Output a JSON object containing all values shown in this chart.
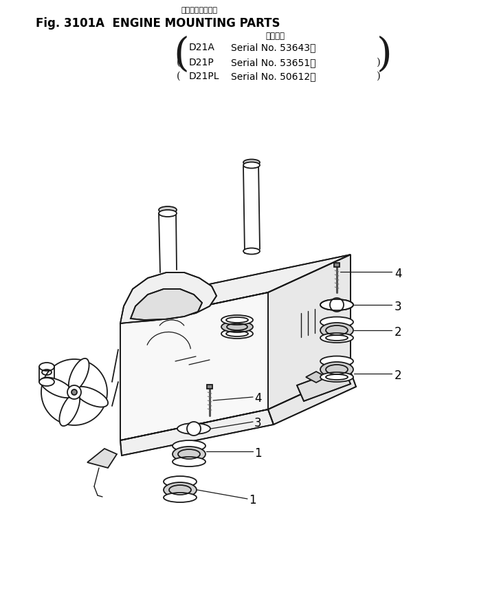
{
  "title_line1": "エンジン取付部品",
  "title_line2": "Fig. 3101A  ENGINE MOUNTING PARTS",
  "applicability_header": "適用号機",
  "models": [
    {
      "name": "D21A",
      "serial": "Serial No. 53643～"
    },
    {
      "name": "D21P",
      "serial": "Serial No. 53651～"
    },
    {
      "name": "D21PL",
      "serial": "Serial No. 50612～"
    }
  ],
  "bg_color": "#ffffff",
  "line_color": "#1a1a1a",
  "text_color": "#000000",
  "fig_width": 7.26,
  "fig_height": 8.88,
  "dpi": 100
}
